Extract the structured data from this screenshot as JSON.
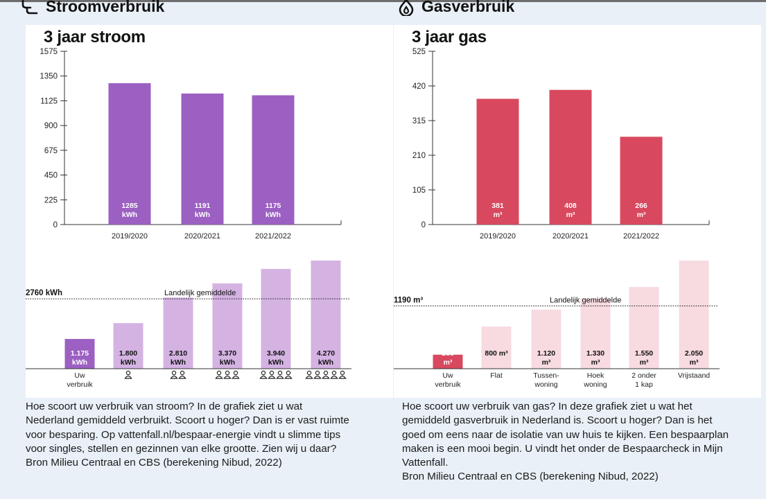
{
  "sections": {
    "electricity": {
      "title": "Stroomverbruik",
      "icon": "plug-icon"
    },
    "gas": {
      "title": "Gasverbruik",
      "icon": "flame-icon"
    }
  },
  "colors": {
    "electricity_bar": "#9b60c2",
    "electricity_light": "#d4b3e3",
    "gas_bar": "#d8495f",
    "gas_light": "#f7dbe1"
  },
  "chart_data": [
    {
      "id": "stroom-3jaar",
      "type": "bar",
      "title": "3 jaar stroom",
      "categories": [
        "2019/2020",
        "2020/2021",
        "2021/2022"
      ],
      "values": [
        1285,
        1191,
        1175
      ],
      "value_labels": [
        "1285",
        "1191",
        "1175"
      ],
      "unit_label": "kWh",
      "ylim": [
        0,
        1575
      ],
      "yticks": [
        0,
        225,
        450,
        675,
        900,
        1125,
        1350,
        1575
      ]
    },
    {
      "id": "stroom-vergelijking",
      "type": "bar",
      "categories": [
        "Uw verbruik",
        "1 persoon",
        "2 personen",
        "3 personen",
        "4 personen",
        "5 personen"
      ],
      "category_labels": [
        "Uw\nverbruik",
        "",
        "",
        "",
        "",
        ""
      ],
      "persons": [
        0,
        1,
        2,
        3,
        4,
        5
      ],
      "values": [
        1175,
        1800,
        2810,
        3370,
        3940,
        4270
      ],
      "value_labels": [
        "1.175",
        "1.800",
        "2.810",
        "3.370",
        "3.940",
        "4.270"
      ],
      "unit_label": "kWh",
      "ylim": [
        0,
        4270
      ],
      "reference": {
        "value": 2760,
        "label": "2760 kWh",
        "caption": "Landelijk gemiddelde"
      }
    },
    {
      "id": "gas-3jaar",
      "type": "bar",
      "title": "3 jaar gas",
      "categories": [
        "2019/2020",
        "2020/2021",
        "2021/2022"
      ],
      "values": [
        381,
        408,
        266
      ],
      "value_labels": [
        "381",
        "408",
        "266"
      ],
      "unit_label": "m³",
      "ylim": [
        0,
        525
      ],
      "yticks": [
        0,
        105,
        210,
        315,
        420,
        525
      ]
    },
    {
      "id": "gas-vergelijking",
      "type": "bar",
      "categories": [
        "Uw verbruik",
        "Flat",
        "Tussenwoning",
        "Hoek woning",
        "2 onder 1 kap",
        "Vrijstaand"
      ],
      "category_labels": [
        "Uw\nverbruik",
        "Flat",
        "Tussen-\nwoning",
        "Hoek\nwoning",
        "2 onder\n1 kap",
        "Vrijstaand"
      ],
      "values": [
        266,
        800,
        1120,
        1330,
        1550,
        2050
      ],
      "value_labels": [
        "266",
        "800 m³",
        "1.120",
        "1.330",
        "1.550",
        "2.050"
      ],
      "unit_labels": [
        "m³",
        "",
        "m³",
        "m³",
        "m³",
        "m³"
      ],
      "ylim": [
        0,
        2050
      ],
      "reference": {
        "value": 1190,
        "label": "1190  m³",
        "caption": "Landelijk gemiddelde"
      }
    }
  ],
  "descriptions": {
    "electricity": [
      "Hoe scoort uw verbruik van stroom? In de grafiek ziet u wat",
      "Nederland gemiddeld verbruikt. Scoort u hoger? Dan is er vast ruimte",
      "voor besparing. Op vattenfall.nl/bespaar-energie vindt u slimme tips",
      "voor singles, stellen en gezinnen van elke grootte. Zien wij u daar?",
      "Bron Milieu Centraal en CBS (berekening Nibud, 2022)"
    ],
    "gas": [
      "Hoe scoort uw verbruik van gas? In deze grafiek ziet u wat het",
      "gemiddeld gasverbruik in Nederland is. Scoort u hoger? Dan is het",
      "goed om eens naar de isolatie van uw huis te kijken. Een bespaarplan",
      "maken is een mooi begin. U vindt het onder de Bespaarcheck in Mijn",
      "Vattenfall.",
      "Bron Milieu Centraal en CBS (berekening Nibud, 2022)"
    ]
  }
}
